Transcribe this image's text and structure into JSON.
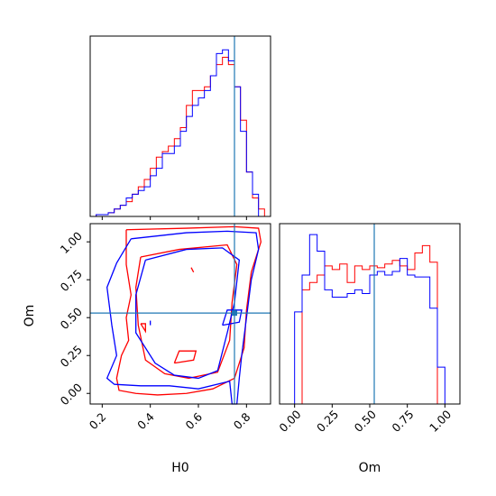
{
  "chart_data": {
    "type": "corner",
    "colors": {
      "series_a": "#ff0000",
      "series_b": "#0000ff",
      "truth": "#1f77b4",
      "axis": "#000000"
    },
    "series": [
      {
        "color": "#ff0000"
      },
      {
        "color": "#0000ff"
      }
    ],
    "truth": {
      "H0": 0.75,
      "Om": 0.53
    },
    "panels": [
      {
        "id": "hist-H0",
        "type": "step-histogram",
        "xlim": [
          0.15,
          0.9
        ],
        "xticks": [
          0.2,
          0.4,
          0.6,
          0.8
        ],
        "show_tick_labels": false,
        "bin_edges": [
          0.15,
          0.175,
          0.2,
          0.225,
          0.25,
          0.275,
          0.3,
          0.325,
          0.35,
          0.375,
          0.4,
          0.425,
          0.45,
          0.475,
          0.5,
          0.525,
          0.55,
          0.575,
          0.6,
          0.625,
          0.65,
          0.675,
          0.7,
          0.725,
          0.75,
          0.775,
          0.8,
          0.825,
          0.85,
          0.875,
          0.9
        ],
        "series_values": [
          [
            0,
            1,
            1,
            2,
            4,
            6,
            8,
            12,
            16,
            20,
            26,
            32,
            35,
            38,
            42,
            48,
            60,
            68,
            68,
            70,
            76,
            82,
            86,
            82,
            70,
            52,
            24,
            10,
            4,
            0
          ],
          [
            0,
            1,
            1,
            2,
            4,
            6,
            10,
            12,
            14,
            16,
            22,
            26,
            34,
            34,
            38,
            46,
            54,
            60,
            64,
            68,
            76,
            88,
            90,
            84,
            70,
            46,
            24,
            12,
            0,
            0
          ]
        ]
      },
      {
        "id": "contour-H0-Om",
        "type": "contour",
        "xlim": [
          0.15,
          0.9
        ],
        "ylim": [
          -0.07,
          1.12
        ],
        "xticks": [
          0.2,
          0.4,
          0.6,
          0.8
        ],
        "xtick_labels": [
          "0.2",
          "0.4",
          "0.6",
          "0.8"
        ],
        "yticks": [
          0.0,
          0.25,
          0.5,
          0.75,
          1.0
        ],
        "ytick_labels": [
          "0.00",
          "0.25",
          "0.50",
          "0.75",
          "1.00"
        ],
        "xlabel": "H0",
        "ylabel": "Om",
        "contours": [
          {
            "series": 0,
            "points": [
              [
                0.3,
                1.08
              ],
              [
                0.55,
                1.09
              ],
              [
                0.75,
                1.1
              ],
              [
                0.85,
                1.09
              ],
              [
                0.86,
                1.0
              ],
              [
                0.82,
                0.8
              ],
              [
                0.8,
                0.55
              ],
              [
                0.79,
                0.3
              ],
              [
                0.75,
                0.1
              ],
              [
                0.66,
                0.03
              ],
              [
                0.55,
                0.0
              ],
              [
                0.43,
                -0.01
              ],
              [
                0.34,
                0.0
              ],
              [
                0.27,
                0.02
              ],
              [
                0.26,
                0.1
              ],
              [
                0.28,
                0.25
              ],
              [
                0.31,
                0.35
              ],
              [
                0.3,
                0.5
              ],
              [
                0.32,
                0.65
              ],
              [
                0.3,
                0.85
              ],
              [
                0.3,
                1.08
              ]
            ]
          },
          {
            "series": 0,
            "points": [
              [
                0.36,
                0.9
              ],
              [
                0.52,
                0.95
              ],
              [
                0.72,
                0.98
              ],
              [
                0.76,
                0.85
              ],
              [
                0.74,
                0.6
              ],
              [
                0.73,
                0.35
              ],
              [
                0.68,
                0.14
              ],
              [
                0.56,
                0.1
              ],
              [
                0.46,
                0.13
              ],
              [
                0.38,
                0.22
              ],
              [
                0.35,
                0.45
              ],
              [
                0.34,
                0.7
              ],
              [
                0.36,
                0.9
              ]
            ]
          },
          {
            "series": 0,
            "points": [
              [
                0.5,
                0.2
              ],
              [
                0.58,
                0.22
              ],
              [
                0.59,
                0.28
              ],
              [
                0.52,
                0.28
              ],
              [
                0.5,
                0.2
              ]
            ]
          },
          {
            "series": 0,
            "points": [
              [
                0.36,
                0.46
              ],
              [
                0.38,
                0.46
              ],
              [
                0.38,
                0.41
              ],
              [
                0.36,
                0.46
              ]
            ]
          },
          {
            "series": 0,
            "points": [
              [
                0.57,
                0.83
              ],
              [
                0.58,
                0.8
              ],
              [
                0.57,
                0.83
              ]
            ]
          },
          {
            "series": 1,
            "points": [
              [
                0.32,
                1.02
              ],
              [
                0.55,
                1.06
              ],
              [
                0.72,
                1.07
              ],
              [
                0.84,
                1.06
              ],
              [
                0.85,
                0.95
              ],
              [
                0.82,
                0.75
              ],
              [
                0.8,
                0.5
              ],
              [
                0.78,
                0.25
              ],
              [
                0.77,
                0.1
              ],
              [
                0.76,
                -0.07
              ],
              [
                0.74,
                -0.07
              ],
              [
                0.73,
                0.08
              ],
              [
                0.6,
                0.03
              ],
              [
                0.48,
                0.05
              ],
              [
                0.36,
                0.05
              ],
              [
                0.25,
                0.06
              ],
              [
                0.22,
                0.1
              ],
              [
                0.26,
                0.25
              ],
              [
                0.24,
                0.45
              ],
              [
                0.22,
                0.7
              ],
              [
                0.26,
                0.86
              ],
              [
                0.32,
                1.02
              ]
            ]
          },
          {
            "series": 1,
            "points": [
              [
                0.38,
                0.88
              ],
              [
                0.55,
                0.95
              ],
              [
                0.7,
                0.96
              ],
              [
                0.77,
                0.88
              ],
              [
                0.75,
                0.6
              ],
              [
                0.72,
                0.4
              ],
              [
                0.68,
                0.15
              ],
              [
                0.6,
                0.1
              ],
              [
                0.5,
                0.12
              ],
              [
                0.42,
                0.2
              ],
              [
                0.34,
                0.4
              ],
              [
                0.34,
                0.65
              ],
              [
                0.38,
                0.88
              ]
            ]
          },
          {
            "series": 1,
            "points": [
              [
                0.7,
                0.45
              ],
              [
                0.77,
                0.47
              ],
              [
                0.78,
                0.55
              ],
              [
                0.72,
                0.55
              ],
              [
                0.7,
                0.45
              ]
            ]
          },
          {
            "series": 1,
            "points": [
              [
                0.4,
                0.48
              ],
              [
                0.4,
                0.45
              ]
            ]
          }
        ]
      },
      {
        "id": "hist-Om",
        "type": "step-histogram",
        "xlim": [
          -0.1,
          1.1
        ],
        "xticks": [
          0.0,
          0.25,
          0.5,
          0.75,
          1.0
        ],
        "xtick_labels": [
          "0.00",
          "0.25",
          "0.50",
          "0.75",
          "1.00"
        ],
        "xlabel": "Om",
        "bin_edges": [
          -0.05,
          0.0,
          0.05,
          0.1,
          0.15,
          0.2,
          0.25,
          0.3,
          0.35,
          0.4,
          0.45,
          0.5,
          0.55,
          0.6,
          0.65,
          0.7,
          0.75,
          0.8,
          0.85,
          0.9,
          0.95,
          1.0,
          1.05
        ],
        "ymax": 95,
        "series_values": [
          [
            0,
            0,
            62,
            66,
            70,
            75,
            73,
            76,
            66,
            75,
            73,
            75,
            74,
            76,
            78,
            75,
            73,
            82,
            86,
            77,
            0,
            0
          ],
          [
            0,
            50,
            70,
            92,
            83,
            62,
            58,
            58,
            60,
            62,
            60,
            70,
            72,
            70,
            72,
            79,
            70,
            69,
            69,
            52,
            20,
            0
          ]
        ]
      }
    ]
  }
}
